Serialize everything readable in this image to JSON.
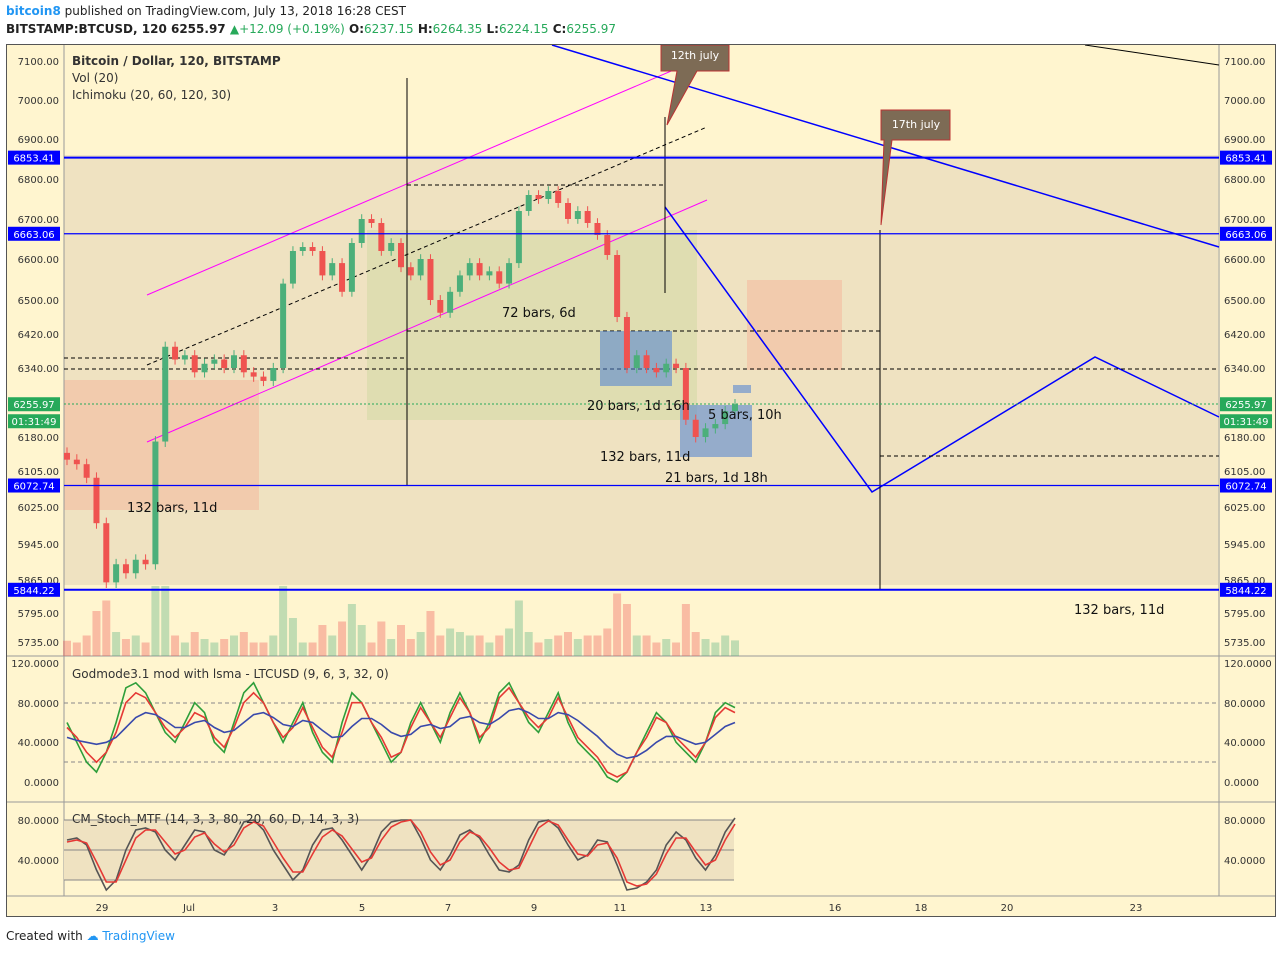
{
  "header": {
    "user": "bitcoin8",
    "published": "published on TradingView.com, July 13, 2018 16:28 CEST",
    "symbol": "BITSTAMP:BTCUSD, 120",
    "price": "6255.97",
    "change": "+12.09 (+0.19%)",
    "o_label": "O:",
    "o": "6237.15",
    "h_label": "H:",
    "h": "6264.35",
    "l_label": "L:",
    "l": "6224.15",
    "c_label": "C:",
    "c": "6255.97"
  },
  "legend": {
    "title": "Bitcoin / Dollar, 120, BITSTAMP",
    "vol": "Vol (20)",
    "ichimoku": "Ichimoku (20, 60, 120, 30)",
    "osc1": "Godmode3.1 mod with lsma - LTCUSD (9, 6, 3, 32, 0)",
    "osc2": "CM_Stoch_MTF (14, 3, 3, 80, 20, 60, D, 14, 3, 3)"
  },
  "footer": {
    "created": "Created with",
    "brand": "TradingView"
  },
  "colors": {
    "up": "#4caf7a",
    "down": "#ef5350",
    "level": "#0000ff",
    "bg": "#fff5cf"
  },
  "chart_data": [
    {
      "type": "candlestick",
      "title": "Bitcoin / Dollar, 120, BITSTAMP",
      "y_ticks": [
        "7100.00",
        "7000.00",
        "6900.00",
        "6800.00",
        "6700.00",
        "6600.00",
        "6500.00",
        "6420.00",
        "6340.00",
        "6180.00",
        "6105.00",
        "6025.00",
        "5945.00",
        "5865.00",
        "5795.00",
        "5735.00"
      ],
      "x_ticks": [
        "29",
        "Jul",
        "3",
        "5",
        "7",
        "9",
        "11",
        "13",
        "16",
        "18",
        "20",
        "23"
      ],
      "price_tags": [
        "6853.41",
        "6663.06",
        "6255.97",
        "01:31:49",
        "6072.74",
        "5844.22"
      ],
      "horizontal_levels": [
        6853.41,
        6663.06,
        6072.74,
        5844.22
      ],
      "last_price": 6255.97,
      "countdown": "01:31:49",
      "annotations": [
        "12th july",
        "17th july",
        "72 bars, 6d",
        "20 bars, 1d 16h",
        "5 bars, 10h",
        "132 bars, 11d",
        "21 bars, 1d 18h",
        "132 bars, 11d",
        "132 bars, 11d"
      ],
      "closes": [
        6130,
        6120,
        6090,
        5990,
        5860,
        5900,
        5880,
        5910,
        5900,
        6170,
        6390,
        6360,
        6370,
        6330,
        6350,
        6360,
        6340,
        6370,
        6330,
        6320,
        6310,
        6340,
        6540,
        6620,
        6630,
        6620,
        6560,
        6590,
        6520,
        6640,
        6700,
        6690,
        6620,
        6640,
        6580,
        6560,
        6600,
        6500,
        6470,
        6520,
        6560,
        6590,
        6560,
        6570,
        6540,
        6590,
        6720,
        6760,
        6750,
        6770,
        6740,
        6700,
        6720,
        6690,
        6660,
        6610,
        6460,
        6340,
        6370,
        6340,
        6330,
        6350,
        6340,
        6220,
        6180,
        6200,
        6210,
        6240,
        6256
      ]
    },
    {
      "type": "line",
      "title": "Godmode3.1 mod with lsma - LTCUSD (9, 6, 3, 32, 0)",
      "y_ticks": [
        "120.0000",
        "80.0000",
        "40.0000",
        "0.0000"
      ],
      "series": [
        {
          "values": [
            60,
            40,
            20,
            10,
            30,
            60,
            95,
            100,
            90,
            70,
            50,
            40,
            60,
            80,
            70,
            40,
            30,
            60,
            90,
            100,
            80,
            60,
            40,
            60,
            80,
            50,
            30,
            20,
            60,
            90,
            80,
            60,
            40,
            20,
            30,
            60,
            80,
            60,
            40,
            70,
            90,
            70,
            40,
            60,
            90,
            100,
            80,
            60,
            50,
            70,
            90,
            60,
            40,
            30,
            20,
            5,
            0,
            10,
            30,
            50,
            70,
            60,
            40,
            30,
            20,
            40,
            70,
            80,
            75
          ]
        },
        {
          "values": [
            55,
            45,
            30,
            20,
            30,
            50,
            80,
            90,
            85,
            70,
            55,
            45,
            55,
            70,
            65,
            45,
            35,
            55,
            80,
            90,
            80,
            60,
            45,
            55,
            75,
            55,
            35,
            25,
            50,
            80,
            80,
            60,
            45,
            25,
            30,
            55,
            75,
            60,
            45,
            65,
            85,
            70,
            45,
            55,
            85,
            95,
            80,
            65,
            55,
            65,
            85,
            65,
            45,
            35,
            25,
            10,
            5,
            10,
            30,
            45,
            65,
            60,
            45,
            35,
            25,
            40,
            65,
            75,
            70
          ]
        },
        {
          "values": [
            45,
            42,
            40,
            38,
            40,
            45,
            55,
            65,
            70,
            68,
            62,
            55,
            55,
            60,
            62,
            55,
            50,
            52,
            60,
            68,
            70,
            65,
            58,
            56,
            62,
            60,
            52,
            45,
            46,
            56,
            64,
            64,
            58,
            50,
            46,
            48,
            56,
            58,
            54,
            56,
            64,
            66,
            60,
            58,
            64,
            72,
            74,
            70,
            64,
            64,
            70,
            68,
            62,
            54,
            46,
            36,
            28,
            24,
            26,
            32,
            40,
            46,
            46,
            42,
            38,
            40,
            48,
            56,
            60
          ]
        }
      ]
    },
    {
      "type": "line",
      "title": "CM_Stoch_MTF (14, 3, 3, 80, 20, 60, D, 14, 3, 3)",
      "y_ticks": [
        "80.0000",
        "40.0000"
      ],
      "series": [
        {
          "values": [
            60,
            62,
            55,
            30,
            10,
            20,
            50,
            70,
            72,
            68,
            50,
            40,
            55,
            70,
            68,
            50,
            45,
            60,
            78,
            80,
            70,
            50,
            35,
            20,
            30,
            55,
            70,
            72,
            60,
            45,
            30,
            45,
            68,
            78,
            80,
            80,
            62,
            40,
            30,
            45,
            65,
            70,
            62,
            45,
            30,
            28,
            35,
            60,
            78,
            80,
            72,
            55,
            40,
            45,
            60,
            58,
            35,
            10,
            12,
            18,
            30,
            55,
            68,
            60,
            42,
            30,
            45,
            68,
            82
          ]
        },
        {
          "values": [
            58,
            60,
            57,
            38,
            18,
            18,
            40,
            62,
            70,
            70,
            58,
            46,
            50,
            63,
            67,
            56,
            48,
            55,
            72,
            78,
            74,
            58,
            42,
            28,
            28,
            46,
            63,
            70,
            64,
            51,
            38,
            42,
            60,
            73,
            78,
            80,
            68,
            48,
            35,
            40,
            58,
            68,
            64,
            52,
            38,
            30,
            32,
            52,
            72,
            79,
            75,
            60,
            46,
            44,
            55,
            57,
            42,
            18,
            14,
            16,
            26,
            46,
            62,
            62,
            48,
            35,
            40,
            60,
            76
          ]
        }
      ]
    }
  ]
}
